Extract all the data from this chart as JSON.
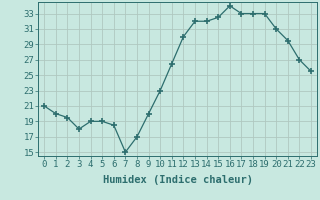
{
  "x": [
    0,
    1,
    2,
    3,
    4,
    5,
    6,
    7,
    8,
    9,
    10,
    11,
    12,
    13,
    14,
    15,
    16,
    17,
    18,
    19,
    20,
    21,
    22,
    23
  ],
  "y": [
    21,
    20,
    19.5,
    18,
    19,
    19,
    18.5,
    15,
    17,
    20,
    23,
    26.5,
    30,
    32,
    32,
    32.5,
    34,
    33,
    33,
    33,
    31,
    29.5,
    27,
    25.5
  ],
  "xlabel": "Humidex (Indice chaleur)",
  "ylabel": "",
  "line_color": "#2d6e6e",
  "marker": "+",
  "marker_size": 4,
  "bg_color": "#c8e8e0",
  "grid_color": "#b0c8c0",
  "ylim": [
    14.5,
    34.5
  ],
  "xlim": [
    -0.5,
    23.5
  ],
  "yticks": [
    15,
    17,
    19,
    21,
    23,
    25,
    27,
    29,
    31,
    33
  ],
  "xticks": [
    0,
    1,
    2,
    3,
    4,
    5,
    6,
    7,
    8,
    9,
    10,
    11,
    12,
    13,
    14,
    15,
    16,
    17,
    18,
    19,
    20,
    21,
    22,
    23
  ],
  "xtick_labels": [
    "0",
    "1",
    "2",
    "3",
    "4",
    "5",
    "6",
    "7",
    "8",
    "9",
    "10",
    "11",
    "12",
    "13",
    "14",
    "15",
    "16",
    "17",
    "18",
    "19",
    "20",
    "21",
    "22",
    "23"
  ],
  "tick_fontsize": 6.5,
  "xlabel_fontsize": 7.5
}
